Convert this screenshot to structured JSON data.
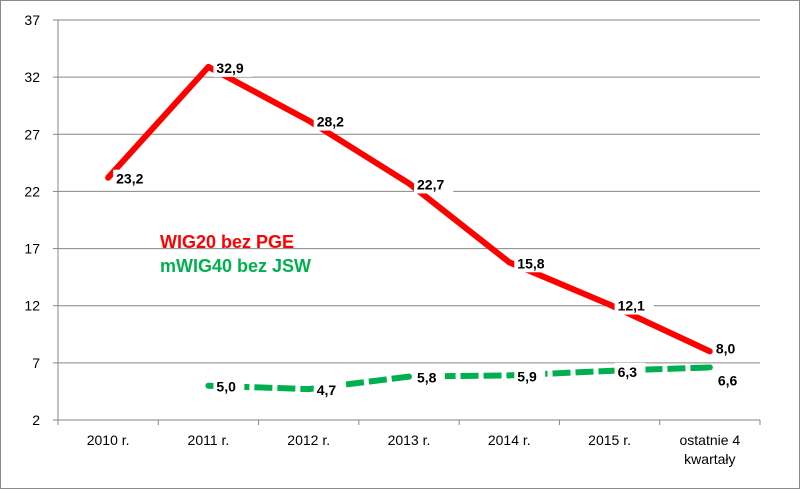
{
  "chart_data": {
    "type": "line",
    "title": "",
    "xlabel": "",
    "ylabel": "",
    "categories": [
      "2010 r.",
      "2011 r.",
      "2012 r.",
      "2013 r.",
      "2014 r.",
      "2015 r.",
      "ostatnie 4 kwartały"
    ],
    "ylim": [
      2,
      37
    ],
    "yticks": [
      2,
      7,
      12,
      17,
      22,
      27,
      32,
      37
    ],
    "grid": true,
    "series": [
      {
        "name": "WIG20 bez PGE",
        "color": "#ff0000",
        "style": "solid",
        "values": [
          23.2,
          32.9,
          28.2,
          22.7,
          15.8,
          12.1,
          8.0
        ],
        "labels": [
          "23,2",
          "32,9",
          "28,2",
          "22,7",
          "15,8",
          "12,1",
          "8,0"
        ]
      },
      {
        "name": "mWIG40 bez JSW",
        "color": "#00b050",
        "style": "dashed",
        "values": [
          null,
          5.0,
          4.7,
          5.8,
          5.9,
          6.3,
          6.6
        ],
        "labels": [
          null,
          "5,0",
          "4,7",
          "5,8",
          "5,9",
          "6,3",
          "6,6"
        ]
      }
    ],
    "legend": {
      "placement": "center-left",
      "entries": [
        "WIG20 bez PGE",
        "mWIG40 bez JSW"
      ]
    }
  }
}
